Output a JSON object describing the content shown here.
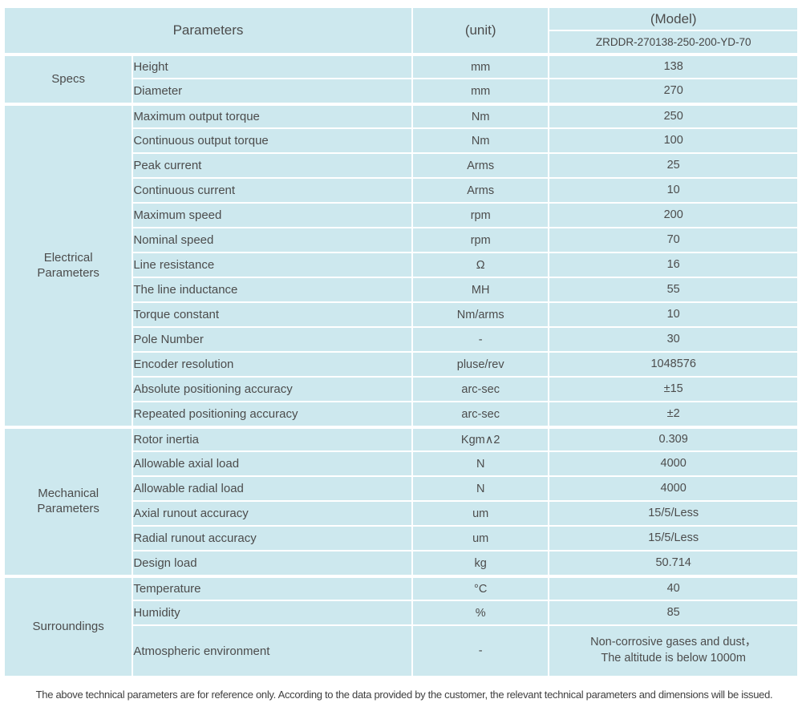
{
  "colors": {
    "header_bg": "#97d5cc",
    "row_bg": "#cde8ee",
    "text": "#4c4c4c"
  },
  "header": {
    "parameters_label": "Parameters",
    "unit_label": "(unit)",
    "model_label": "(Model)",
    "model_number": "ZRDDR-270138-250-200-YD-70"
  },
  "table": {
    "groups": [
      {
        "label": "Specs",
        "rows": [
          {
            "parameter": "Height",
            "unit": "mm",
            "value": "138"
          },
          {
            "parameter": "Diameter",
            "unit": "mm",
            "value": "270"
          }
        ]
      },
      {
        "label": "Electrical\nParameters",
        "rows": [
          {
            "parameter": "Maximum output torque",
            "unit": "Nm",
            "value": "250"
          },
          {
            "parameter": "Continuous output torque",
            "unit": "Nm",
            "value": "100"
          },
          {
            "parameter": "Peak current",
            "unit": "Arms",
            "value": "25"
          },
          {
            "parameter": "Continuous current",
            "unit": "Arms",
            "value": "10"
          },
          {
            "parameter": "Maximum speed",
            "unit": "rpm",
            "value": "200"
          },
          {
            "parameter": "Nominal speed",
            "unit": "rpm",
            "value": "70"
          },
          {
            "parameter": "Line resistance",
            "unit": "Ω",
            "value": "16"
          },
          {
            "parameter": "The line inductance",
            "unit": "MH",
            "value": "55"
          },
          {
            "parameter": "Torque constant",
            "unit": "Nm/arms",
            "value": "10"
          },
          {
            "parameter": "Pole Number",
            "unit": "-",
            "value": "30"
          },
          {
            "parameter": "Encoder resolution",
            "unit": "pluse/rev",
            "value": "1048576"
          },
          {
            "parameter": "Absolute positioning accuracy",
            "unit": "arc-sec",
            "value": "±15"
          },
          {
            "parameter": "Repeated positioning accuracy",
            "unit": "arc-sec",
            "value": "±2"
          }
        ]
      },
      {
        "label": "Mechanical\nParameters",
        "rows": [
          {
            "parameter": "Rotor inertia",
            "unit": "Kgm∧2",
            "value": "0.309"
          },
          {
            "parameter": "Allowable axial load",
            "unit": "N",
            "value": "4000"
          },
          {
            "parameter": "Allowable radial load",
            "unit": "N",
            "value": "4000"
          },
          {
            "parameter": "Axial runout accuracy",
            "unit": "um",
            "value": "15/5/Less"
          },
          {
            "parameter": "Radial runout accuracy",
            "unit": "um",
            "value": "15/5/Less"
          },
          {
            "parameter": "Design load",
            "unit": "kg",
            "value": "50.714"
          }
        ]
      },
      {
        "label": "Surroundings",
        "rows": [
          {
            "parameter": "Temperature",
            "unit": "°C",
            "value": "40"
          },
          {
            "parameter": "Humidity",
            "unit": "%",
            "value": "85"
          },
          {
            "parameter": "Atmospheric environment",
            "unit": "-",
            "value": "Non-corrosive gases and dust，\nThe altitude is below 1000m",
            "tall": true
          }
        ]
      }
    ]
  },
  "footer": {
    "note": "The above technical parameters are for reference only. According to the data provided by the customer, the relevant technical parameters and dimensions will be issued."
  }
}
